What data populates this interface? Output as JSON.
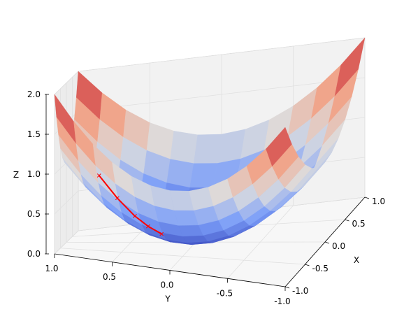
{
  "chart_data": {
    "type": "surface3d",
    "title": "",
    "surface": {
      "function": "z = x^2 + y^2",
      "x_range": [
        -1.0,
        1.0
      ],
      "y_range": [
        -1.0,
        1.0
      ],
      "grid_n": 13,
      "colormap": "coolwarm"
    },
    "trajectory": {
      "color": "#ff0000",
      "points": [
        {
          "x": -0.75,
          "y": 0.65,
          "z": 1.0
        },
        {
          "x": -0.6,
          "y": 0.52,
          "z": 0.7
        },
        {
          "x": -0.45,
          "y": 0.4,
          "z": 0.45
        },
        {
          "x": -0.35,
          "y": 0.31,
          "z": 0.3
        },
        {
          "x": -0.25,
          "y": 0.22,
          "z": 0.18
        }
      ]
    },
    "axes": {
      "x": {
        "label": "X",
        "ticks": [
          "-1.0",
          "-0.5",
          "0.0",
          "0.5",
          "1.0"
        ],
        "lim": [
          -1.0,
          1.0
        ]
      },
      "y": {
        "label": "Y",
        "ticks": [
          "1.0",
          "0.5",
          "0.0",
          "-0.5",
          "-1.0"
        ],
        "lim": [
          -1.0,
          1.0
        ]
      },
      "z": {
        "label": "Z",
        "ticks": [
          "0.0",
          "0.5",
          "1.0",
          "1.5",
          "2.0"
        ],
        "lim": [
          0.0,
          2.0
        ]
      }
    },
    "grid": true,
    "colors": {
      "pane": "#f2f2f2",
      "pane_edge": "#cccccc",
      "grid": "#e0e0e0"
    }
  }
}
